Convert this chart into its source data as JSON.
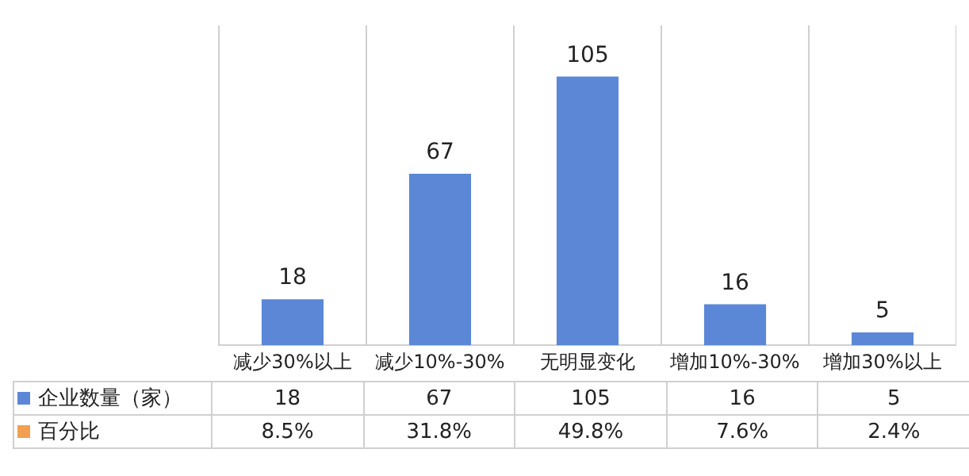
{
  "chart_data": {
    "type": "bar",
    "categories": [
      "减少30%以上",
      "减少10%-30%",
      "无明显变化",
      "增加10%-30%",
      "增加30%以上"
    ],
    "series": [
      {
        "name": "企业数量（家）",
        "color": "#5b87d6",
        "values": [
          18,
          67,
          105,
          16,
          5
        ],
        "value_labels": [
          "18",
          "67",
          "105",
          "16",
          "5"
        ]
      },
      {
        "name": "百分比",
        "color": "#f0a050",
        "values": [
          0.085,
          0.318,
          0.498,
          0.076,
          0.024
        ],
        "value_labels": [
          "8.5%",
          "31.8%",
          "49.8%",
          "7.6%",
          "2.4%"
        ]
      }
    ],
    "ylim": [
      0,
      125
    ],
    "data_labels": true,
    "grid": "x",
    "legend": "bottom"
  }
}
